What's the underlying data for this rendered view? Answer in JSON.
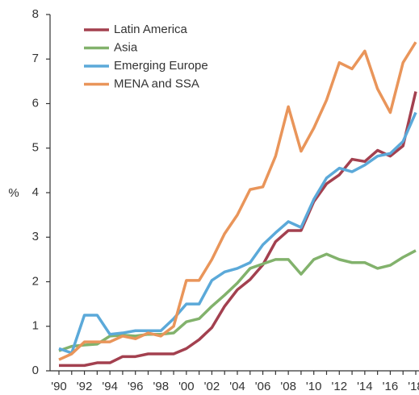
{
  "chart_data": {
    "type": "line",
    "y_label": "%",
    "categories": [
      "'90",
      null,
      "'92",
      null,
      "'94",
      null,
      "'96",
      null,
      "'98",
      null,
      "'00",
      null,
      "'02",
      null,
      "'04",
      null,
      "'06",
      null,
      "'08",
      null,
      "'10",
      null,
      "'12",
      null,
      "'14",
      null,
      "'16",
      null,
      "'18"
    ],
    "series": [
      {
        "name": "Latin America",
        "color": "#a3404f",
        "values": [
          0.12,
          0.12,
          0.12,
          0.18,
          0.18,
          0.32,
          0.32,
          0.38,
          0.38,
          0.38,
          0.5,
          0.7,
          0.97,
          1.45,
          1.82,
          2.05,
          2.38,
          2.9,
          3.15,
          3.15,
          3.8,
          4.2,
          4.4,
          4.75,
          4.7,
          4.95,
          4.82,
          5.05,
          6.27
        ]
      },
      {
        "name": "Asia",
        "color": "#82b26c",
        "values": [
          0.45,
          0.55,
          0.58,
          0.6,
          0.78,
          0.8,
          0.78,
          0.82,
          0.82,
          0.85,
          1.1,
          1.17,
          1.45,
          1.7,
          1.97,
          2.3,
          2.4,
          2.5,
          2.5,
          2.17,
          2.5,
          2.62,
          2.5,
          2.43,
          2.43,
          2.3,
          2.37,
          2.55,
          2.7
        ]
      },
      {
        "name": "Emerging Europe",
        "color": "#5ba9d9",
        "values": [
          0.5,
          0.4,
          1.25,
          1.25,
          0.82,
          0.85,
          0.9,
          0.9,
          0.9,
          1.17,
          1.5,
          1.5,
          2.03,
          2.22,
          2.3,
          2.43,
          2.83,
          3.1,
          3.35,
          3.22,
          3.85,
          4.33,
          4.55,
          4.47,
          4.62,
          4.82,
          4.88,
          5.15,
          5.8
        ]
      },
      {
        "name": "MENA and SSA",
        "color": "#e9955a",
        "values": [
          0.25,
          0.38,
          0.65,
          0.65,
          0.65,
          0.78,
          0.72,
          0.85,
          0.78,
          1.0,
          2.03,
          2.03,
          2.5,
          3.08,
          3.5,
          4.07,
          4.13,
          4.82,
          5.93,
          4.93,
          5.45,
          6.08,
          6.92,
          6.78,
          7.18,
          6.33,
          5.8,
          6.92,
          7.38
        ]
      }
    ],
    "ylim": [
      0,
      8
    ],
    "yticks": [
      0,
      1,
      2,
      3,
      4,
      5,
      6,
      7,
      8
    ],
    "grid": false,
    "legend": "top-left"
  }
}
